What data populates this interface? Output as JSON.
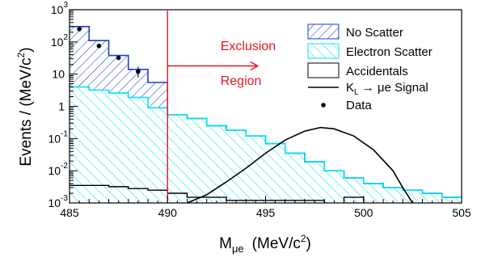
{
  "chart_data": {
    "type": "histogram",
    "xlabel": "M",
    "xlabel_subscript": "μe",
    "xlabel_units": "(MeV/c",
    "xlabel_units_sup": "2",
    "xlabel_units_close": ")",
    "ylabel": "Events / (MeV/c",
    "ylabel_sup": "2",
    "ylabel_close": ")",
    "xlim": [
      485,
      505
    ],
    "ylim": [
      0.001,
      1000
    ],
    "yscale": "log",
    "x_ticks": [
      485,
      490,
      495,
      500,
      505
    ],
    "x_tick_labels": [
      "485",
      "490",
      "495",
      "500",
      "505"
    ],
    "y_ticks": [
      {
        "value": 1000,
        "base": "10",
        "exp": "3"
      },
      {
        "value": 100,
        "base": "10",
        "exp": "2"
      },
      {
        "value": 10,
        "base": "10",
        "exp": ""
      },
      {
        "value": 1,
        "base": "1",
        "exp": ""
      },
      {
        "value": 0.1,
        "base": "10",
        "exp": "-1"
      },
      {
        "value": 0.01,
        "base": "10",
        "exp": "-2"
      },
      {
        "value": 0.001,
        "base": "10",
        "exp": "-3"
      }
    ],
    "bin_width": 1,
    "bin_edges_start": 485,
    "stacked_total": [
      300,
      110,
      38,
      14,
      5.5,
      0.55,
      0.42,
      0.25,
      0.18,
      0.12,
      0.07,
      0.035,
      0.019,
      0.01,
      0.006,
      0.004,
      0.003,
      0.0025,
      0.002,
      0.0015
    ],
    "series": [
      {
        "name": "No Scatter",
        "style": "hatch-back",
        "color": "#1a3fd4",
        "description": "difference between stacked total and electron scatter"
      },
      {
        "name": "Electron Scatter",
        "style": "hatch-forward",
        "color": "#00e5f0",
        "values": [
          4.0,
          3.2,
          2.6,
          1.9,
          0.9,
          0.55,
          0.42,
          0.25,
          0.18,
          0.12,
          0.07,
          0.035,
          0.019,
          0.01,
          0.006,
          0.004,
          0.003,
          0.0025,
          0.002,
          0.0015
        ]
      },
      {
        "name": "Accidentals",
        "style": "outline",
        "color": "#000000",
        "values": [
          0.0035,
          0.0035,
          0.0032,
          0.0028,
          0.0025,
          0.002,
          0.0015,
          0.0015,
          0.0012,
          0.0012,
          0.0012,
          0.0012,
          0.0012,
          0.0006,
          0.0015,
          0.0006,
          0.0006,
          0.0006,
          0.0006,
          0.0006
        ]
      },
      {
        "name": "K",
        "name_sub": "L",
        "name_rest": " → μe Signal",
        "style": "curve",
        "color": "#000000",
        "x": [
          491.0,
          492.0,
          493.0,
          494.0,
          495.0,
          496.0,
          497.0,
          497.8,
          498.5,
          499.5,
          500.5,
          501.5,
          502.0,
          502.5
        ],
        "y": [
          0.001,
          0.0018,
          0.0045,
          0.012,
          0.035,
          0.09,
          0.17,
          0.22,
          0.2,
          0.12,
          0.045,
          0.01,
          0.003,
          0.001
        ]
      },
      {
        "name": "Data",
        "style": "points",
        "color": "#000000",
        "x": [
          485.5,
          486.5,
          487.5,
          488.5
        ],
        "y": [
          250,
          75,
          32,
          12
        ],
        "yerr_low": [
          0,
          0,
          0,
          4
        ],
        "yerr_high": [
          0,
          0,
          0,
          5
        ]
      }
    ],
    "exclusion_line_x": 490,
    "annotations": [
      {
        "text": "Exclusion",
        "x": 492.7,
        "y": 55
      },
      {
        "text": "Region",
        "x": 492.7,
        "y": 4.6
      }
    ],
    "arrow": {
      "x_from": 490.0,
      "x_to": 494.6,
      "y": 18
    },
    "legend_placement": "top-right",
    "colors": {
      "no_scatter": "#1a3fd4",
      "electron_scatter": "#00e5f0",
      "exclusion": "#e8141e"
    }
  }
}
